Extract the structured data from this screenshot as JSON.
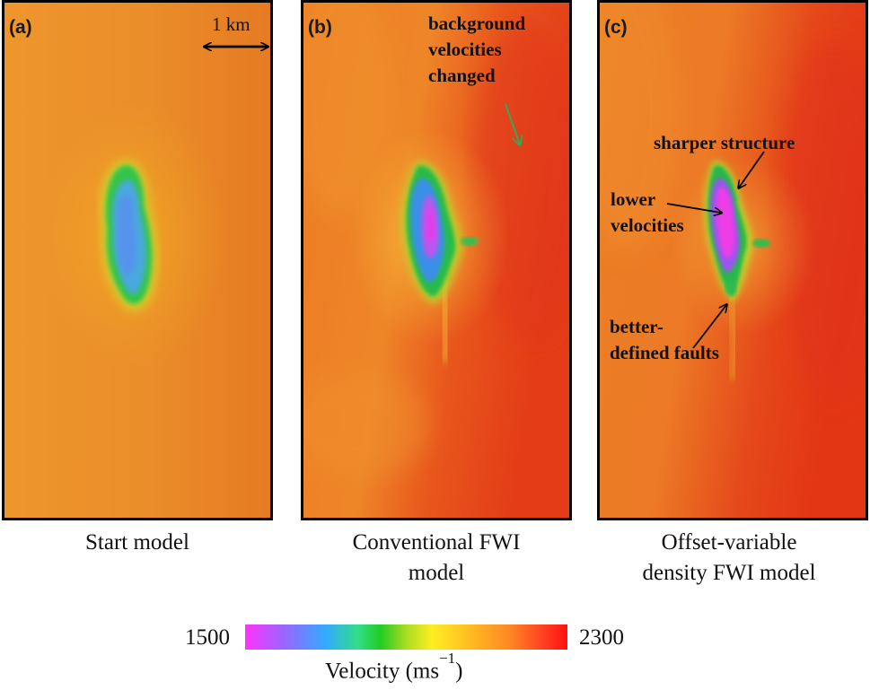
{
  "panels": {
    "a": {
      "label": "(a)",
      "caption": [
        "Start model"
      ]
    },
    "b": {
      "label": "(b)",
      "caption": [
        "Conventional FWI",
        "model"
      ]
    },
    "c": {
      "label": "(c)",
      "caption": [
        "Offset-variable",
        "density FWI model"
      ]
    }
  },
  "scale_bar": {
    "label": "1 km"
  },
  "annotations": {
    "background": [
      "background",
      "velocities",
      "changed"
    ],
    "sharper": "sharper structure",
    "lower": [
      "lower",
      "velocities"
    ],
    "faults": [
      "better-",
      "defined faults"
    ]
  },
  "colorbar": {
    "min": "1500",
    "max": "2300",
    "title": "Velocity (ms",
    "title_sup": "−1",
    "title_end": ")",
    "range": [
      1500,
      2300
    ],
    "colors": [
      "#ff33ff",
      "#9966ff",
      "#33aaff",
      "#33dd88",
      "#22cc22",
      "#aadd22",
      "#ffee22",
      "#ffbb22",
      "#ff8822",
      "#ff4422",
      "#ff1111"
    ]
  }
}
